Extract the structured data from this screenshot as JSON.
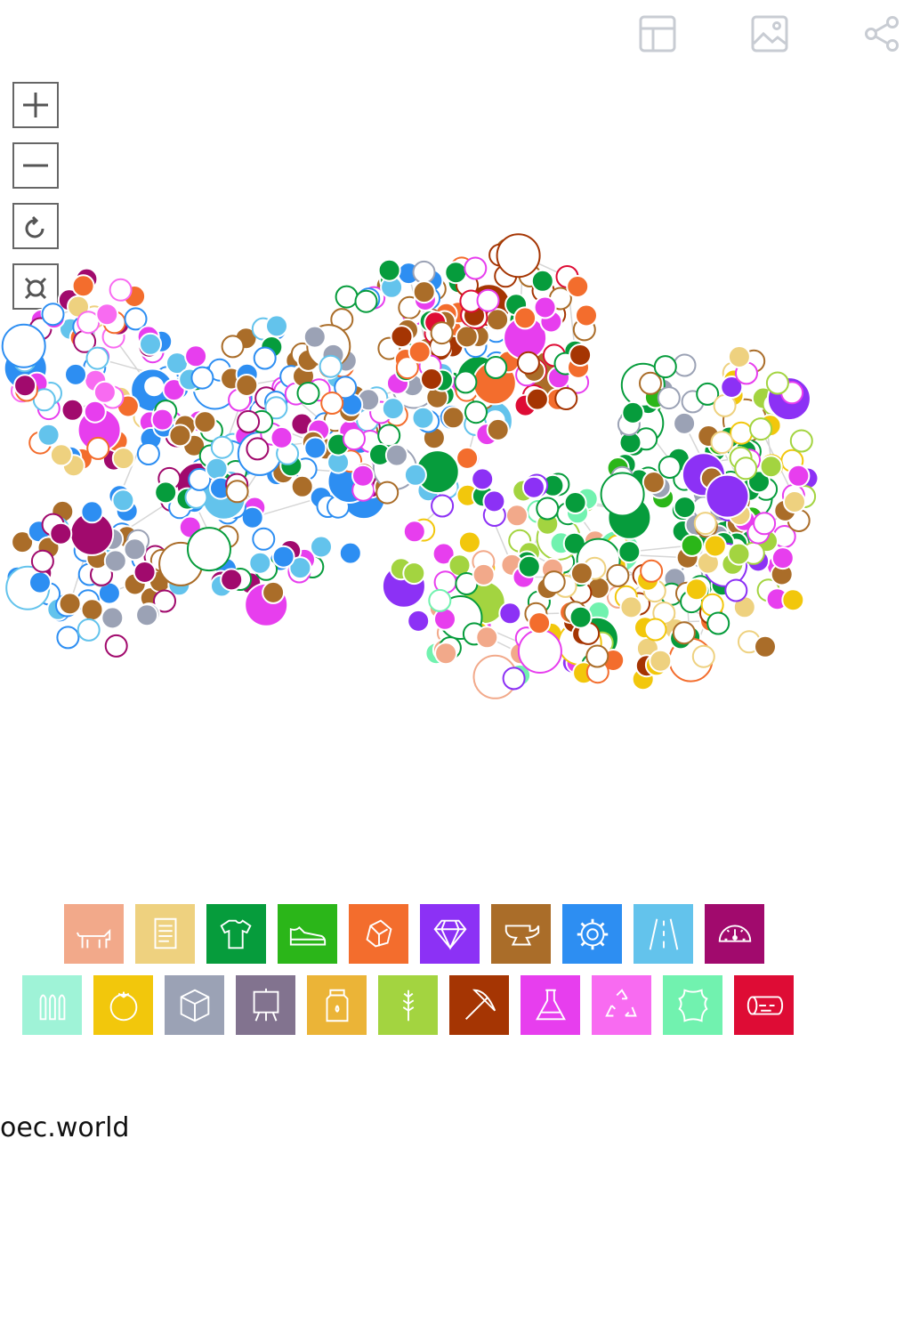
{
  "toolbar": {
    "buttons": [
      {
        "name": "table-icon"
      },
      {
        "name": "image-icon"
      },
      {
        "name": "share-icon"
      }
    ]
  },
  "zoom_controls": [
    {
      "name": "zoom-in-icon"
    },
    {
      "name": "zoom-out-icon"
    },
    {
      "name": "reset-icon"
    },
    {
      "name": "fullscreen-icon"
    }
  ],
  "legend": {
    "rows": [
      [
        {
          "name": "animal-products",
          "icon": "cow-icon",
          "color": "#F2A98A"
        },
        {
          "name": "vegetable-products",
          "icon": "scroll-icon",
          "color": "#EED17F"
        },
        {
          "name": "textiles",
          "icon": "shirt-icon",
          "color": "#069C3C"
        },
        {
          "name": "footwear",
          "icon": "shoe-icon",
          "color": "#2BB619"
        },
        {
          "name": "stone-glass",
          "icon": "stone-icon",
          "color": "#F36D2D"
        },
        {
          "name": "precious-metals",
          "icon": "diamond-icon",
          "color": "#8C31F5"
        },
        {
          "name": "metals",
          "icon": "anvil-icon",
          "color": "#AA6D29"
        },
        {
          "name": "machines",
          "icon": "gear-icon",
          "color": "#2D8EF2"
        },
        {
          "name": "transportation",
          "icon": "road-icon",
          "color": "#63C3EC"
        },
        {
          "name": "instruments",
          "icon": "gauge-icon",
          "color": "#A10A6D"
        }
      ],
      [
        {
          "name": "weapons",
          "icon": "bullets-icon",
          "color": "#9FF3D7"
        },
        {
          "name": "foodstuffs",
          "icon": "tomato-icon",
          "color": "#F2C70C"
        },
        {
          "name": "miscellaneous",
          "icon": "box-icon",
          "color": "#9BA2B5"
        },
        {
          "name": "arts-antiques",
          "icon": "easel-icon",
          "color": "#82738F"
        },
        {
          "name": "animal-vegetable-oils",
          "icon": "jar-icon",
          "color": "#EBB437"
        },
        {
          "name": "vegetable-products-2",
          "icon": "wheat-icon",
          "color": "#A3D440"
        },
        {
          "name": "mineral-products",
          "icon": "pickaxe-icon",
          "color": "#A53503"
        },
        {
          "name": "chemical-products",
          "icon": "flask-icon",
          "color": "#E73EEE"
        },
        {
          "name": "plastics-rubbers",
          "icon": "recycle-icon",
          "color": "#F86BF1"
        },
        {
          "name": "animal-hides",
          "icon": "hide-icon",
          "color": "#71F2AF"
        },
        {
          "name": "wood-products",
          "icon": "log-icon",
          "color": "#DE0C35"
        }
      ]
    ]
  },
  "source": {
    "text": "oec.world"
  }
}
